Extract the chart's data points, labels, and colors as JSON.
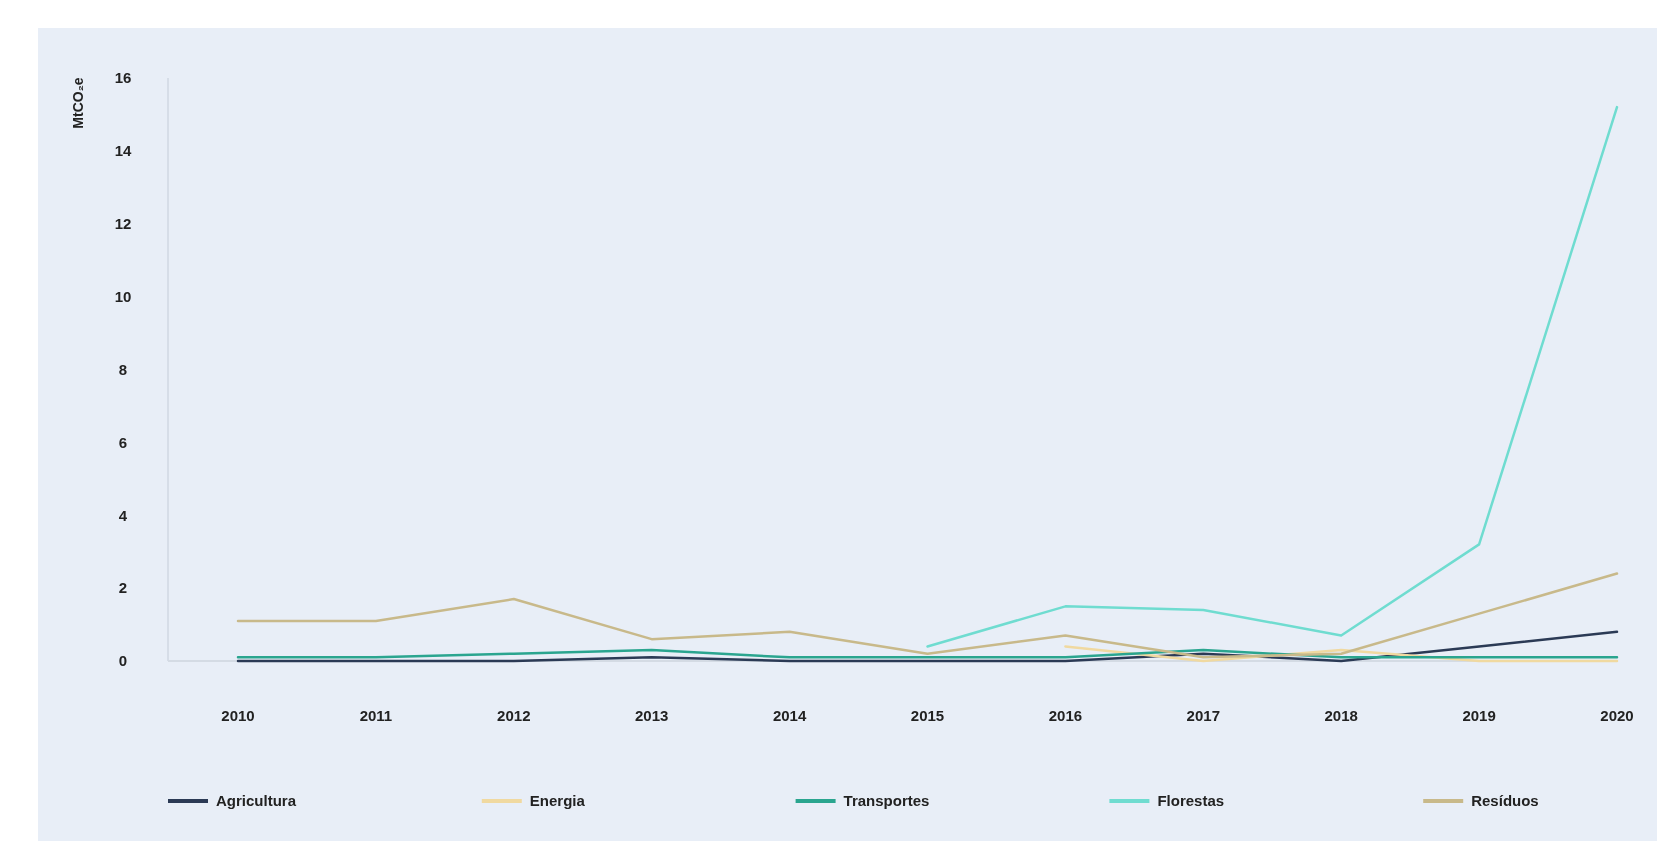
{
  "chart_data": {
    "type": "line",
    "ylabel": "MtCO₂e",
    "categories": [
      "2010",
      "2011",
      "2012",
      "2013",
      "2014",
      "2015",
      "2016",
      "2017",
      "2018",
      "2019",
      "2020"
    ],
    "series": [
      {
        "name": "Agricultura",
        "color": "#2b3a55",
        "values": [
          0,
          0,
          0,
          0.1,
          0,
          0,
          0,
          0.2,
          0,
          0.4,
          0.8
        ]
      },
      {
        "name": "Energia",
        "color": "#f0d9a0",
        "values": [
          null,
          null,
          null,
          null,
          null,
          null,
          0.4,
          0,
          0.3,
          0,
          0
        ]
      },
      {
        "name": "Transportes",
        "color": "#2aa58f",
        "values": [
          0.1,
          0.1,
          0.2,
          0.3,
          0.1,
          0.1,
          0.1,
          0.3,
          0.1,
          0.1,
          0.1
        ]
      },
      {
        "name": "Florestas",
        "color": "#6fdcd0",
        "values": [
          null,
          null,
          null,
          null,
          null,
          0.4,
          1.5,
          1.4,
          0.7,
          3.2,
          15.2
        ]
      },
      {
        "name": "Resíduos",
        "color": "#c8b98a",
        "values": [
          1.1,
          1.1,
          1.7,
          0.6,
          0.8,
          0.2,
          0.7,
          0.1,
          0.2,
          1.3,
          2.4
        ]
      }
    ],
    "ylim": [
      0,
      16
    ],
    "yticks": [
      0,
      2,
      4,
      6,
      8,
      10,
      12,
      14,
      16
    ],
    "grid": false,
    "legend": "bottom",
    "line_style": "solid",
    "marker": "none"
  }
}
